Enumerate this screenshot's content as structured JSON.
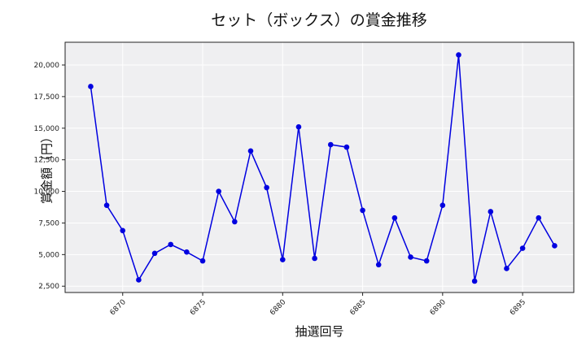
{
  "chart_data": {
    "type": "line",
    "title": "セット（ボックス）の賞金推移",
    "xlabel": "抽選回号",
    "ylabel": "賞金額（円）",
    "x": [
      6868,
      6869,
      6870,
      6871,
      6872,
      6873,
      6874,
      6875,
      6876,
      6877,
      6878,
      6879,
      6880,
      6881,
      6882,
      6883,
      6884,
      6885,
      6886,
      6887,
      6888,
      6889,
      6890,
      6891,
      6892,
      6893,
      6894,
      6895,
      6896,
      6897
    ],
    "series": [
      {
        "name": "セット（ボックス）",
        "color": "#0000e0",
        "values": [
          18300,
          8900,
          6900,
          3000,
          5100,
          5800,
          5200,
          4500,
          10000,
          7600,
          13200,
          10300,
          4600,
          15100,
          4700,
          13700,
          13500,
          8500,
          4200,
          7900,
          4800,
          4500,
          8900,
          20800,
          2900,
          8400,
          3900,
          5500,
          7900,
          5700
        ]
      }
    ],
    "xticks": [
      6870,
      6875,
      6880,
      6885,
      6890,
      6895
    ],
    "yticks": [
      2500,
      5000,
      7500,
      10000,
      12500,
      15000,
      17500,
      20000
    ],
    "ytick_labels": [
      "2,500",
      "5,000",
      "7,500",
      "10,000",
      "12,500",
      "15,000",
      "17,500",
      "20,000"
    ],
    "xlim": [
      6866.4,
      6898.2
    ],
    "ylim": [
      2000,
      21800
    ],
    "grid": true,
    "legend": null,
    "background": "#efeff1"
  }
}
